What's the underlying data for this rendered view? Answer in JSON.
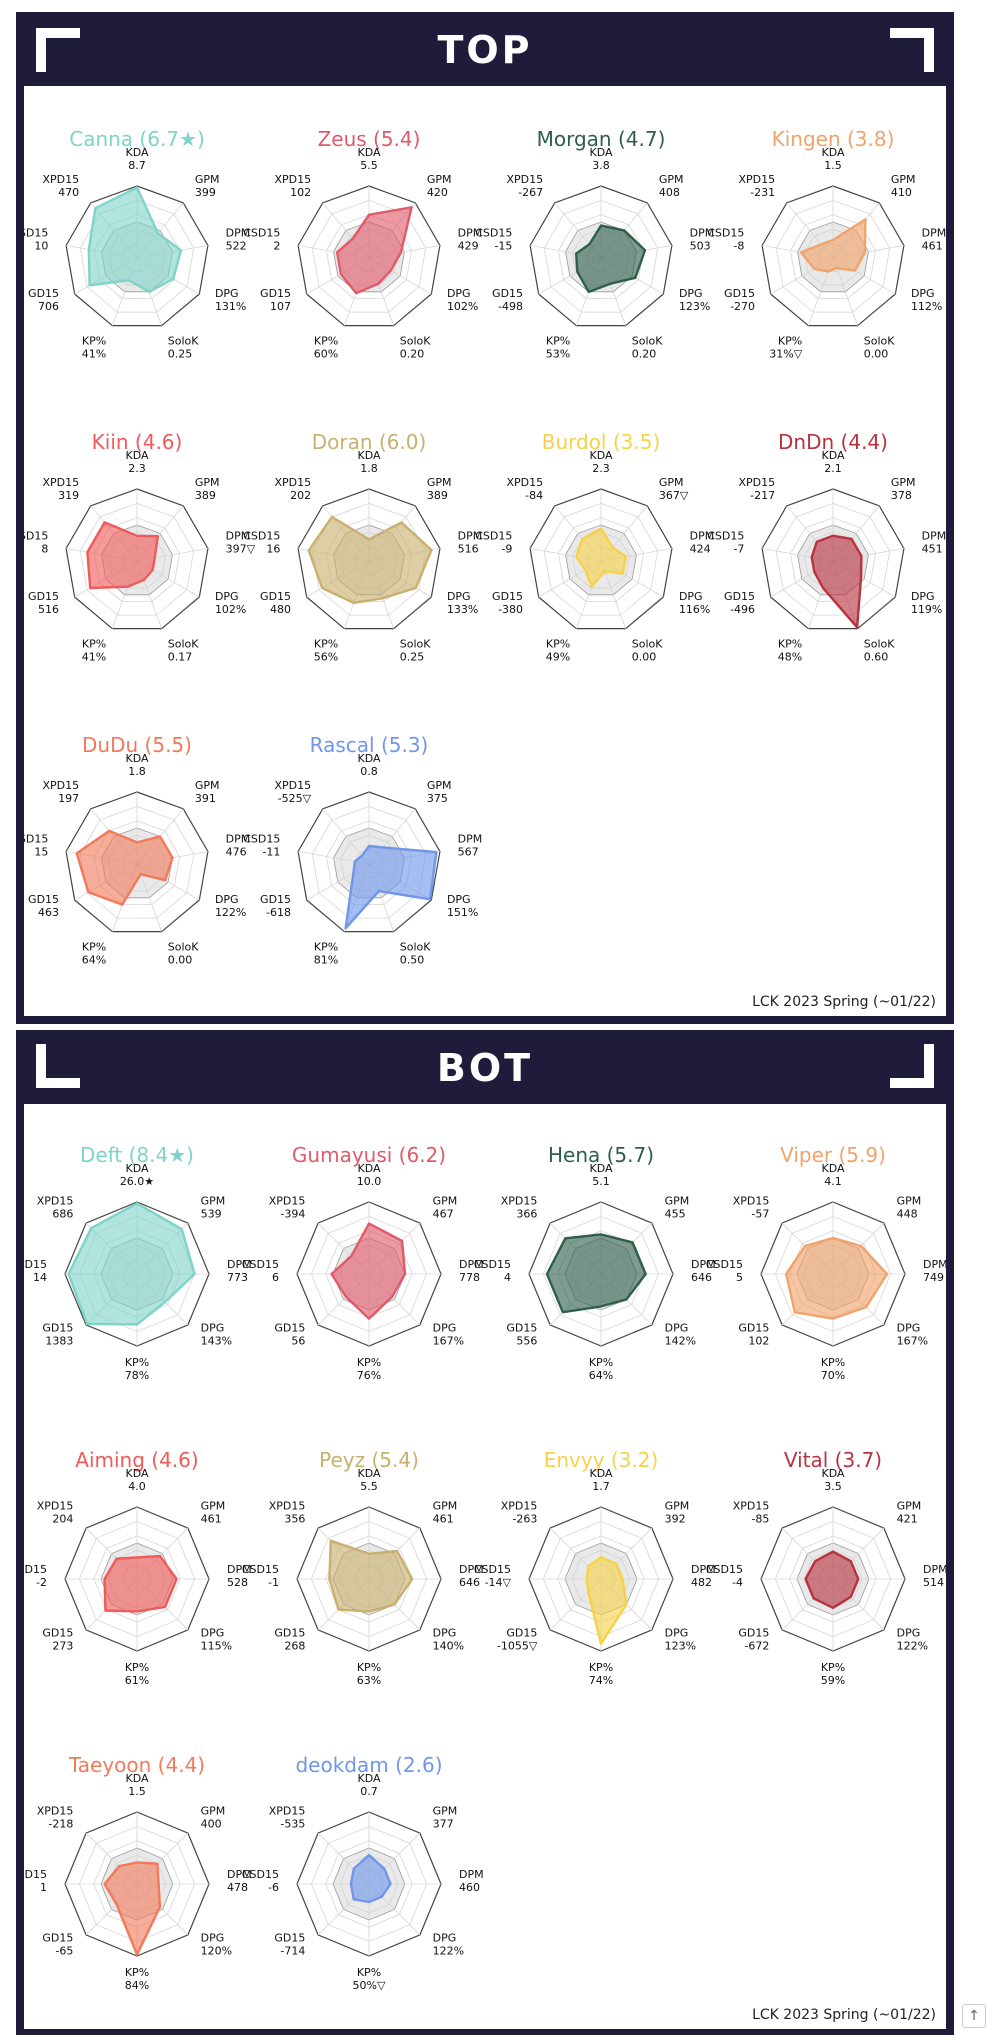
{
  "sections": {
    "top": {
      "title": "TOP",
      "footer": "LCK 2023 Spring (~01/22)"
    },
    "bot": {
      "title": "BOT",
      "footer": "LCK 2023 Spring (~01/22)"
    }
  },
  "scroll_top_icon": "↑",
  "chart_data": [
    {
      "type": "radar",
      "section": "TOP",
      "axes": [
        "KDA",
        "GPM",
        "DPM",
        "DPG",
        "SoloK",
        "KP%",
        "GD15",
        "CSD15",
        "XPD15"
      ],
      "players": [
        {
          "title": "Canna (6.7★)",
          "color": "#7fd3c8",
          "values": [
            "8.7",
            "399",
            "522",
            "131%",
            "0.25",
            "41%",
            "706",
            "10",
            "470"
          ],
          "radii": [
            0.98,
            0.45,
            0.62,
            0.58,
            0.5,
            0.33,
            0.76,
            0.68,
            0.9
          ]
        },
        {
          "title": "Zeus (5.4)",
          "color": "#e05a6a",
          "values": [
            "5.5",
            "420",
            "429",
            "102%",
            "0.20",
            "60%",
            "107",
            "2",
            "102"
          ],
          "radii": [
            0.6,
            0.92,
            0.45,
            0.35,
            0.38,
            0.52,
            0.45,
            0.45,
            0.35
          ]
        },
        {
          "title": "Morgan (4.7)",
          "color": "#2f5f4a",
          "values": [
            "3.8",
            "408",
            "503",
            "123%",
            "0.20",
            "53%",
            "-498",
            "-15",
            "-267"
          ],
          "radii": [
            0.45,
            0.5,
            0.62,
            0.55,
            0.38,
            0.5,
            0.38,
            0.35,
            0.25
          ]
        },
        {
          "title": "Kingen (3.8)",
          "color": "#f0a36b",
          "values": [
            "1.5",
            "410",
            "461",
            "112%",
            "0.00",
            "31%▽",
            "-270",
            "-8",
            "-231"
          ],
          "radii": [
            0.25,
            0.7,
            0.45,
            0.35,
            0.15,
            0.2,
            0.3,
            0.45,
            0.25
          ]
        },
        {
          "title": "Kiin (4.6)",
          "color": "#ef5a5a",
          "values": [
            "2.3",
            "389",
            "397▽",
            "102%",
            "0.17",
            "41%",
            "516",
            "8",
            "319"
          ],
          "radii": [
            0.35,
            0.45,
            0.25,
            0.25,
            0.28,
            0.38,
            0.75,
            0.7,
            0.7
          ]
        },
        {
          "title": "Doran (6.0)",
          "color": "#c9b06e",
          "values": [
            "1.8",
            "389",
            "516",
            "133%",
            "0.25",
            "56%",
            "480",
            "16",
            "202"
          ],
          "radii": [
            0.3,
            0.7,
            0.88,
            0.75,
            0.55,
            0.62,
            0.75,
            0.85,
            0.8
          ]
        },
        {
          "title": "Burdol (3.5)",
          "color": "#f5d24a",
          "values": [
            "2.3",
            "367▽",
            "424",
            "116%",
            "0.00",
            "49%",
            "-380",
            "-9",
            "-84"
          ],
          "radii": [
            0.45,
            0.25,
            0.35,
            0.35,
            0.15,
            0.38,
            0.25,
            0.35,
            0.4
          ]
        },
        {
          "title": "DnDn (4.4)",
          "color": "#b8333f",
          "values": [
            "2.1",
            "378",
            "451",
            "119%",
            "0.60",
            "48%",
            "-496",
            "-7",
            "-217"
          ],
          "radii": [
            0.35,
            0.4,
            0.4,
            0.45,
            0.98,
            0.4,
            0.3,
            0.3,
            0.35
          ]
        },
        {
          "title": "DuDu (5.5)",
          "color": "#f07a5a",
          "values": [
            "1.8",
            "391",
            "476",
            "122%",
            "0.00",
            "64%",
            "463",
            "15",
            "197"
          ],
          "radii": [
            0.3,
            0.5,
            0.5,
            0.45,
            0.15,
            0.6,
            0.78,
            0.85,
            0.6
          ]
        },
        {
          "title": "Rascal (5.3)",
          "color": "#6f96e8",
          "values": [
            "0.8",
            "375",
            "567",
            "151%",
            "0.50",
            "81%",
            "-618",
            "-11",
            "-525▽"
          ],
          "radii": [
            0.25,
            0.3,
            0.95,
            0.98,
            0.4,
            0.95,
            0.25,
            0.2,
            0.15
          ]
        }
      ]
    },
    {
      "type": "radar",
      "section": "BOT",
      "axes": [
        "KDA",
        "GPM",
        "DPM",
        "DPG",
        "KP%",
        "GD15",
        "CSD15",
        "XPD15"
      ],
      "players": [
        {
          "title": "Deft (8.4★)",
          "color": "#7fd3c8",
          "values": [
            "26.0★",
            "539",
            "773",
            "143%",
            "78%",
            "1383",
            "14",
            "686"
          ],
          "radii": [
            0.98,
            0.88,
            0.8,
            0.55,
            0.7,
            0.98,
            0.95,
            0.9
          ]
        },
        {
          "title": "Gumayusi (6.2)",
          "color": "#e05a6a",
          "values": [
            "10.0",
            "467",
            "778",
            "167%",
            "76%",
            "56",
            "6",
            "-394"
          ],
          "radii": [
            0.7,
            0.65,
            0.5,
            0.45,
            0.62,
            0.45,
            0.52,
            0.35
          ]
        },
        {
          "title": "Hena (5.7)",
          "color": "#2f5f4a",
          "values": [
            "5.1",
            "455",
            "646",
            "142%",
            "64%",
            "556",
            "4",
            "366"
          ],
          "radii": [
            0.55,
            0.62,
            0.62,
            0.5,
            0.45,
            0.75,
            0.75,
            0.7
          ]
        },
        {
          "title": "Viper (5.9)",
          "color": "#f0a36b",
          "values": [
            "4.1",
            "448",
            "749",
            "167%",
            "70%",
            "102",
            "5",
            "-57"
          ],
          "radii": [
            0.5,
            0.55,
            0.75,
            0.65,
            0.62,
            0.75,
            0.65,
            0.55
          ]
        },
        {
          "title": "Aiming (4.6)",
          "color": "#ef5a5a",
          "values": [
            "4.0",
            "461",
            "528",
            "115%",
            "61%",
            "273",
            "-2",
            "204"
          ],
          "radii": [
            0.3,
            0.45,
            0.55,
            0.55,
            0.45,
            0.62,
            0.45,
            0.4
          ]
        },
        {
          "title": "Peyz (5.4)",
          "color": "#c9b06e",
          "values": [
            "5.5",
            "461",
            "646",
            "140%",
            "63%",
            "268",
            "-1",
            "356"
          ],
          "radii": [
            0.35,
            0.55,
            0.6,
            0.5,
            0.45,
            0.6,
            0.55,
            0.75
          ]
        },
        {
          "title": "Envyy (3.2)",
          "color": "#f5d24a",
          "values": [
            "1.7",
            "392",
            "482",
            "123%",
            "74%",
            "-1055▽",
            "-14▽",
            "-263"
          ],
          "radii": [
            0.3,
            0.3,
            0.3,
            0.5,
            0.9,
            0.25,
            0.2,
            0.25
          ]
        },
        {
          "title": "Vital (3.7)",
          "color": "#b8333f",
          "values": [
            "3.5",
            "421",
            "514",
            "122%",
            "59%",
            "-672",
            "-4",
            "-85"
          ],
          "radii": [
            0.38,
            0.35,
            0.35,
            0.35,
            0.4,
            0.38,
            0.38,
            0.35
          ]
        },
        {
          "title": "Taeyoon (4.4)",
          "color": "#f07a5a",
          "values": [
            "1.5",
            "400",
            "478",
            "120%",
            "84%",
            "-65",
            "1",
            "-218"
          ],
          "radii": [
            0.3,
            0.4,
            0.3,
            0.45,
            0.98,
            0.4,
            0.45,
            0.35
          ]
        },
        {
          "title": "deokdam (2.6)",
          "color": "#6f96e8",
          "values": [
            "0.7",
            "377",
            "460",
            "122%",
            "50%▽",
            "-714",
            "-6",
            "-535"
          ],
          "radii": [
            0.4,
            0.3,
            0.3,
            0.25,
            0.25,
            0.3,
            0.25,
            0.3
          ]
        }
      ]
    }
  ]
}
